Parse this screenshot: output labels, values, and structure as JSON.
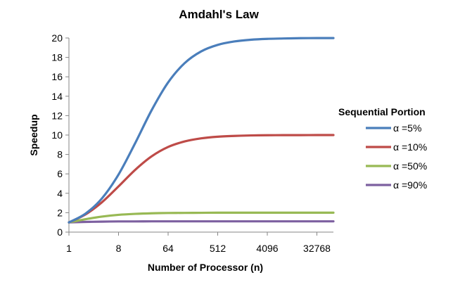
{
  "chart_data": {
    "type": "line",
    "title": "Amdahl's Law",
    "xlabel": "Number of Processor (n)",
    "ylabel": "Speedup",
    "x_scale": "log2",
    "x": [
      1,
      2,
      4,
      8,
      16,
      32,
      64,
      128,
      256,
      512,
      1024,
      2048,
      4096,
      8192,
      16384,
      32768,
      65536
    ],
    "x_tick_labels": [
      "1",
      "8",
      "64",
      "512",
      "4096",
      "32768"
    ],
    "x_ticks": [
      1,
      8,
      64,
      512,
      4096,
      32768
    ],
    "xlim": [
      1,
      65536
    ],
    "ylim": [
      0,
      20
    ],
    "y_ticks": [
      0,
      2,
      4,
      6,
      8,
      10,
      12,
      14,
      16,
      18,
      20
    ],
    "y_tick_labels": [
      "0",
      "2",
      "4",
      "6",
      "8",
      "10",
      "12",
      "14",
      "16",
      "18",
      "20"
    ],
    "grid": false,
    "legend_title": "Sequential Portion",
    "legend_position": "right",
    "series": [
      {
        "name": "α =5%",
        "color": "#4a7ebb",
        "values": [
          1.0,
          1.9,
          3.48,
          5.93,
          9.14,
          12.55,
          15.42,
          17.41,
          18.62,
          19.29,
          19.64,
          19.82,
          19.91,
          19.95,
          19.98,
          19.99,
          19.99
        ]
      },
      {
        "name": "α =10%",
        "color": "#be4b48",
        "values": [
          1.0,
          1.82,
          3.08,
          4.71,
          6.4,
          7.8,
          8.77,
          9.34,
          9.66,
          9.83,
          9.91,
          9.96,
          9.98,
          9.99,
          9.99,
          10.0,
          10.0
        ]
      },
      {
        "name": "α =50%",
        "color": "#98b954",
        "values": [
          1.0,
          1.33,
          1.6,
          1.78,
          1.88,
          1.94,
          1.97,
          1.98,
          1.99,
          2.0,
          2.0,
          2.0,
          2.0,
          2.0,
          2.0,
          2.0,
          2.0
        ]
      },
      {
        "name": "α =90%",
        "color": "#7d60a0",
        "values": [
          1.0,
          1.05,
          1.08,
          1.1,
          1.1,
          1.11,
          1.11,
          1.11,
          1.11,
          1.11,
          1.11,
          1.11,
          1.11,
          1.11,
          1.11,
          1.11,
          1.11
        ]
      }
    ]
  }
}
